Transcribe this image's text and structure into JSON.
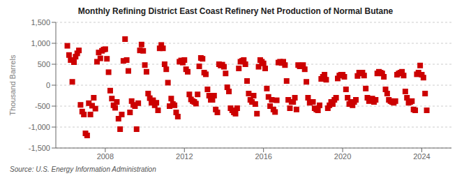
{
  "chart_data": {
    "type": "scatter",
    "title": "Monthly Refining District East Coast Refinery Net Production of Normal Butane",
    "y_label": "Thousand Barrels",
    "annotations": [
      "Source: U.S. Energy Information Administration"
    ],
    "color": "#cc0000",
    "marker": "square",
    "grid": "y",
    "xlim": [
      2005.5,
      2025.5
    ],
    "xticks": [
      2008,
      2012,
      2016,
      2020,
      2024
    ],
    "ylim": [
      -1500,
      1500
    ],
    "yticks": [
      {
        "value": -1500,
        "label": "-1,500"
      },
      {
        "value": -1000,
        "label": "-1,000"
      },
      {
        "value": -500,
        "label": "-500"
      },
      0,
      500,
      {
        "value": 1000,
        "label": "1,000"
      },
      {
        "value": 1500,
        "label": "1,500"
      }
    ],
    "x": [
      2006.083,
      2006.167,
      2006.25,
      2006.333,
      2006.417,
      2006.5,
      2006.583,
      2006.667,
      2006.75,
      2006.833,
      2006.917,
      2007.0,
      2007.083,
      2007.167,
      2007.25,
      2007.333,
      2007.417,
      2007.5,
      2007.583,
      2007.667,
      2007.75,
      2007.833,
      2007.917,
      2008.0,
      2008.083,
      2008.167,
      2008.25,
      2008.333,
      2008.417,
      2008.5,
      2008.583,
      2008.667,
      2008.75,
      2008.833,
      2008.917,
      2009.0,
      2009.083,
      2009.167,
      2009.25,
      2009.333,
      2009.417,
      2009.5,
      2009.583,
      2009.667,
      2009.75,
      2009.833,
      2009.917,
      2010.0,
      2010.083,
      2010.167,
      2010.25,
      2010.333,
      2010.417,
      2010.5,
      2010.583,
      2010.667,
      2010.75,
      2010.833,
      2010.917,
      2011.0,
      2011.083,
      2011.167,
      2011.25,
      2011.333,
      2011.417,
      2011.5,
      2011.583,
      2011.667,
      2011.75,
      2011.833,
      2011.917,
      2012.0,
      2012.083,
      2012.167,
      2012.25,
      2012.333,
      2012.417,
      2012.5,
      2012.583,
      2012.667,
      2012.75,
      2012.833,
      2012.917,
      2013.0,
      2013.083,
      2013.167,
      2013.25,
      2013.333,
      2013.417,
      2013.5,
      2013.583,
      2013.667,
      2013.75,
      2013.833,
      2013.917,
      2014.0,
      2014.083,
      2014.167,
      2014.25,
      2014.333,
      2014.417,
      2014.5,
      2014.583,
      2014.667,
      2014.75,
      2014.833,
      2014.917,
      2015.0,
      2015.083,
      2015.167,
      2015.25,
      2015.333,
      2015.417,
      2015.5,
      2015.583,
      2015.667,
      2015.75,
      2015.833,
      2015.917,
      2016.0,
      2016.083,
      2016.167,
      2016.25,
      2016.333,
      2016.417,
      2016.5,
      2016.583,
      2016.667,
      2016.75,
      2016.833,
      2016.917,
      2017.0,
      2017.083,
      2017.167,
      2017.25,
      2017.333,
      2017.417,
      2017.5,
      2017.583,
      2017.667,
      2017.75,
      2017.833,
      2017.917,
      2018.0,
      2018.083,
      2018.167,
      2018.25,
      2018.333,
      2018.417,
      2018.5,
      2018.583,
      2018.667,
      2018.75,
      2018.833,
      2018.917,
      2019.0,
      2019.083,
      2019.167,
      2019.25,
      2019.333,
      2019.417,
      2019.5,
      2019.583,
      2019.667,
      2019.75,
      2019.833,
      2019.917,
      2020.0,
      2020.083,
      2020.167,
      2020.25,
      2020.333,
      2020.417,
      2020.5,
      2020.583,
      2020.667,
      2020.75,
      2020.833,
      2020.917,
      2021.0,
      2021.083,
      2021.167,
      2021.25,
      2021.333,
      2021.417,
      2021.5,
      2021.583,
      2021.667,
      2021.75,
      2021.833,
      2021.917,
      2022.0,
      2022.083,
      2022.167,
      2022.25,
      2022.333,
      2022.417,
      2022.5,
      2022.583,
      2022.667,
      2022.75,
      2022.833,
      2022.917,
      2023.0,
      2023.083,
      2023.167,
      2023.25,
      2023.333,
      2023.417,
      2023.5,
      2023.583,
      2023.667,
      2023.75,
      2023.833,
      2023.917,
      2024.0,
      2024.083,
      2024.167,
      2024.25
    ],
    "values": [
      940,
      720,
      600,
      80,
      550,
      680,
      760,
      830,
      -470,
      -630,
      -700,
      -1150,
      -1200,
      -430,
      -700,
      -490,
      -300,
      -560,
      560,
      780,
      640,
      820,
      850,
      860,
      630,
      310,
      -130,
      -320,
      -480,
      -540,
      -400,
      -800,
      -1050,
      -700,
      580,
      1100,
      600,
      340,
      -650,
      -380,
      -470,
      -500,
      -1050,
      -430,
      830,
      970,
      820,
      480,
      320,
      -200,
      -310,
      -420,
      -360,
      -480,
      -420,
      -600,
      880,
      960,
      880,
      500,
      380,
      60,
      -500,
      -320,
      -450,
      -480,
      -650,
      -750,
      560,
      590,
      540,
      600,
      380,
      320,
      -220,
      -340,
      -380,
      -400,
      -440,
      -220,
      450,
      650,
      630,
      300,
      260,
      -100,
      -250,
      -350,
      -350,
      -250,
      -580,
      -650,
      500,
      470,
      490,
      440,
      280,
      -50,
      -150,
      -550,
      -600,
      -650,
      -680,
      -550,
      400,
      560,
      580,
      600,
      500,
      100,
      -200,
      -350,
      -400,
      -250,
      -450,
      -680,
      440,
      600,
      560,
      520,
      400,
      -80,
      -280,
      -500,
      -350,
      -580,
      -640,
      -360,
      540,
      560,
      530,
      560,
      480,
      100,
      -350,
      -550,
      -400,
      -400,
      -300,
      -580,
      480,
      450,
      470,
      480,
      380,
      80,
      -300,
      -420,
      -400,
      -400,
      -550,
      -580,
      -600,
      -480,
      150,
      200,
      250,
      130,
      -550,
      -480,
      -400,
      -450,
      -350,
      -300,
      160,
      230,
      250,
      250,
      200,
      -100,
      -300,
      -450,
      -400,
      -480,
      -400,
      -350,
      220,
      300,
      280,
      300,
      230,
      -80,
      -300,
      -380,
      -350,
      -320,
      -400,
      -350,
      280,
      320,
      300,
      280,
      200,
      -100,
      -200,
      -350,
      -380,
      -400,
      -420,
      -380,
      250,
      280,
      300,
      320,
      230,
      -150,
      -300,
      -420,
      -400,
      -380,
      -580,
      -600,
      260,
      300,
      470,
      250,
      180,
      -200,
      -600
    ]
  }
}
